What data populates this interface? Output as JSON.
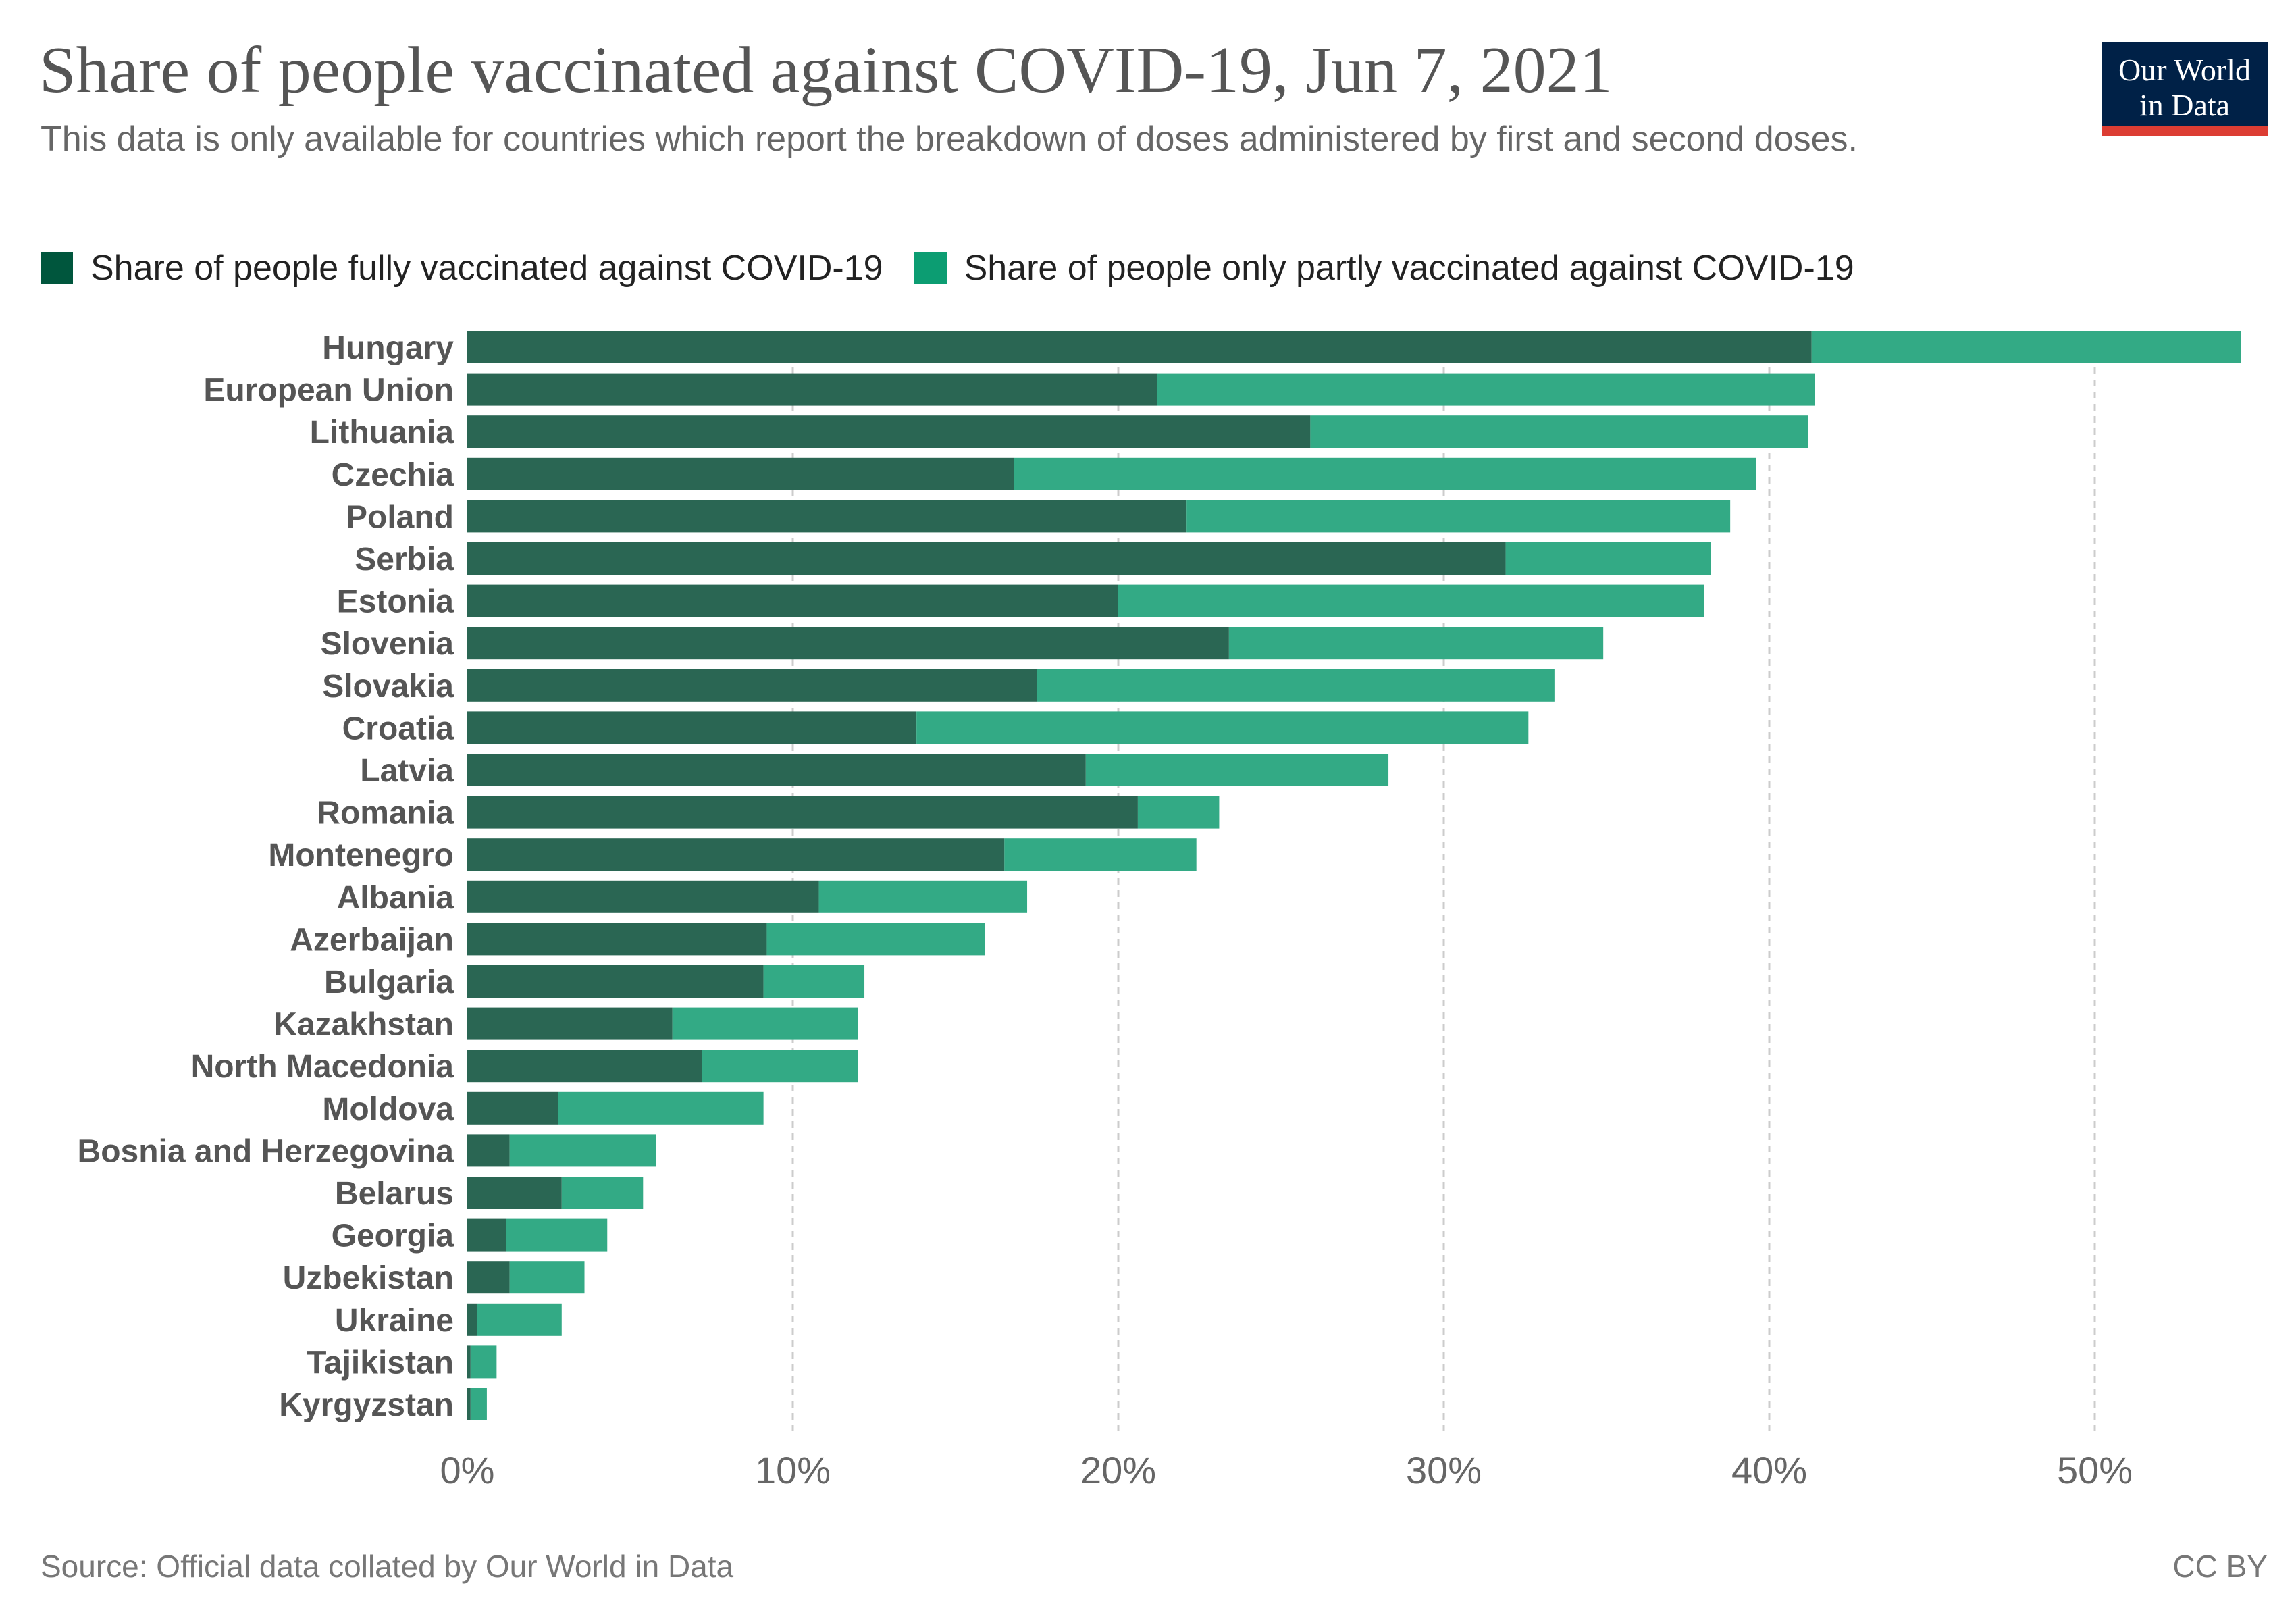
{
  "header": {
    "title": "Share of people vaccinated against COVID-19, Jun 7, 2021",
    "subtitle": "This data is only available for countries which report the breakdown of doses administered by first and second doses."
  },
  "logo": {
    "line1": "Our World",
    "line2": "in Data",
    "colors": {
      "background": "#002147",
      "stripe": "#dc3d33"
    }
  },
  "footer": {
    "source": "Source: Official data collated by Our World in Data",
    "license": "CC BY"
  },
  "colors": {
    "fully_legend": "#00563d",
    "partly_legend": "#0c9d72",
    "fully_bar": "#2a6653",
    "partly_bar": "#33aa85",
    "grid": "#cccccc",
    "label": "#555555",
    "tick": "#666666"
  },
  "chart_data": {
    "type": "bar",
    "orientation": "horizontal",
    "stacked": true,
    "legend_position": "top",
    "grid": true,
    "xlim": [
      0,
      55
    ],
    "x_ticks": [
      0,
      10,
      20,
      30,
      40,
      50
    ],
    "x_tick_labels": [
      "0%",
      "10%",
      "20%",
      "30%",
      "40%",
      "50%"
    ],
    "categories": [
      "Hungary",
      "European Union",
      "Lithuania",
      "Czechia",
      "Poland",
      "Serbia",
      "Estonia",
      "Slovenia",
      "Slovakia",
      "Croatia",
      "Latvia",
      "Romania",
      "Montenegro",
      "Albania",
      "Azerbaijan",
      "Bulgaria",
      "Kazakhstan",
      "North Macedonia",
      "Moldova",
      "Bosnia and Herzegovina",
      "Belarus",
      "Georgia",
      "Uzbekistan",
      "Ukraine",
      "Tajikistan",
      "Kyrgyzstan"
    ],
    "series": [
      {
        "name": "Share of people fully vaccinated against COVID-19",
        "color": "#2a6653",
        "values": [
          41.3,
          21.2,
          25.9,
          16.8,
          22.1,
          31.9,
          20.0,
          23.4,
          17.5,
          13.8,
          19.0,
          20.6,
          16.5,
          10.8,
          9.2,
          9.1,
          6.3,
          7.2,
          2.8,
          1.3,
          2.9,
          1.2,
          1.3,
          0.3,
          0.1,
          0.1
        ]
      },
      {
        "name": "Share of people only partly vaccinated against COVID-19",
        "color": "#33aa85",
        "values": [
          13.2,
          20.2,
          15.3,
          22.8,
          16.7,
          6.3,
          18.0,
          11.5,
          15.9,
          18.8,
          9.3,
          2.5,
          5.9,
          6.4,
          6.7,
          3.1,
          5.7,
          4.8,
          6.3,
          4.5,
          2.5,
          3.1,
          2.3,
          2.6,
          0.8,
          0.5
        ]
      }
    ]
  }
}
